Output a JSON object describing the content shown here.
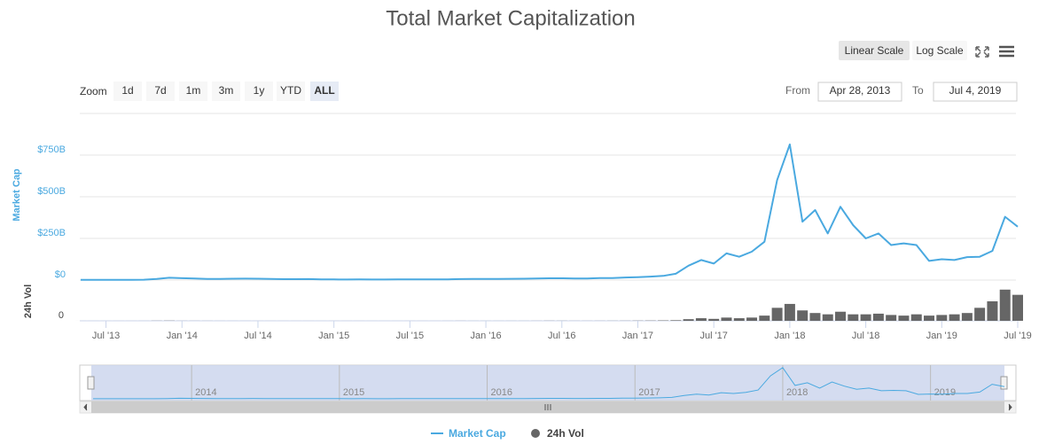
{
  "chart_data": {
    "type": "line",
    "title": "Total Market Capitalization",
    "ylabel": "Market Cap",
    "y2label": "24h Vol",
    "log_scale": false,
    "grid": true,
    "x": [
      "2013-05",
      "2013-06",
      "2013-07",
      "2013-08",
      "2013-09",
      "2013-10",
      "2013-11",
      "2013-12",
      "2014-01",
      "2014-02",
      "2014-03",
      "2014-04",
      "2014-05",
      "2014-06",
      "2014-07",
      "2014-08",
      "2014-09",
      "2014-10",
      "2014-11",
      "2014-12",
      "2015-01",
      "2015-02",
      "2015-03",
      "2015-04",
      "2015-05",
      "2015-06",
      "2015-07",
      "2015-08",
      "2015-09",
      "2015-10",
      "2015-11",
      "2015-12",
      "2016-01",
      "2016-02",
      "2016-03",
      "2016-04",
      "2016-05",
      "2016-06",
      "2016-07",
      "2016-08",
      "2016-09",
      "2016-10",
      "2016-11",
      "2016-12",
      "2017-01",
      "2017-02",
      "2017-03",
      "2017-04",
      "2017-05",
      "2017-06",
      "2017-07",
      "2017-08",
      "2017-09",
      "2017-10",
      "2017-11",
      "2017-12",
      "2018-01",
      "2018-02",
      "2018-03",
      "2018-04",
      "2018-05",
      "2018-06",
      "2018-07",
      "2018-08",
      "2018-09",
      "2018-10",
      "2018-11",
      "2018-12",
      "2019-01",
      "2019-02",
      "2019-03",
      "2019-04",
      "2019-05",
      "2019-06",
      "2019-07"
    ],
    "series": [
      {
        "name": "Market Cap",
        "color": "#4aa9e0",
        "values": [
          1.5,
          1.3,
          1.2,
          1.5,
          1.7,
          2.2,
          7,
          14,
          11,
          9,
          7,
          6.5,
          8,
          8.5,
          8,
          7,
          5.5,
          5.3,
          5.6,
          4.5,
          3.5,
          3.3,
          3.5,
          3.2,
          3.3,
          3.6,
          4.4,
          3.6,
          3.5,
          4.5,
          5.6,
          6.9,
          6.6,
          6.9,
          7.5,
          7.8,
          8.8,
          10.5,
          10.5,
          9.6,
          9.8,
          11.5,
          12.2,
          15.5,
          17.7,
          20.7,
          25,
          38,
          86,
          120,
          99,
          160,
          140,
          170,
          230,
          600,
          814,
          350,
          420,
          280,
          440,
          330,
          250,
          280,
          210,
          220,
          210,
          115,
          125,
          120,
          138,
          140,
          175,
          380,
          320
        ]
      },
      {
        "name": "24h Vol",
        "color": "#666666",
        "axis": "y2",
        "values": [
          0.02,
          0.02,
          0.02,
          0.03,
          0.03,
          0.05,
          0.2,
          0.3,
          0.1,
          0.1,
          0.08,
          0.05,
          0.04,
          0.04,
          0.03,
          0.03,
          0.03,
          0.03,
          0.03,
          0.02,
          0.03,
          0.03,
          0.03,
          0.02,
          0.02,
          0.02,
          0.03,
          0.03,
          0.03,
          0.05,
          0.1,
          0.06,
          0.06,
          0.06,
          0.07,
          0.07,
          0.1,
          0.2,
          0.15,
          0.1,
          0.1,
          0.12,
          0.15,
          0.2,
          0.3,
          0.4,
          0.6,
          0.9,
          2.5,
          4,
          3,
          5,
          4,
          5,
          8,
          20,
          26,
          16,
          12,
          10,
          14,
          10,
          10,
          11,
          9,
          8,
          10,
          8,
          9,
          10,
          12,
          20,
          30,
          48,
          40
        ]
      }
    ],
    "xlim": [
      "2013-05",
      "2019-07"
    ],
    "xticks": [
      {
        "value": "2013-07",
        "label": "Jul '13"
      },
      {
        "value": "2014-01",
        "label": "Jan '14"
      },
      {
        "value": "2014-07",
        "label": "Jul '14"
      },
      {
        "value": "2015-01",
        "label": "Jan '15"
      },
      {
        "value": "2015-07",
        "label": "Jul '15"
      },
      {
        "value": "2016-01",
        "label": "Jan '16"
      },
      {
        "value": "2016-07",
        "label": "Jul '16"
      },
      {
        "value": "2017-01",
        "label": "Jan '17"
      },
      {
        "value": "2017-07",
        "label": "Jul '17"
      },
      {
        "value": "2018-01",
        "label": "Jan '18"
      },
      {
        "value": "2018-07",
        "label": "Jul '18"
      },
      {
        "value": "2019-01",
        "label": "Jan '19"
      },
      {
        "value": "2019-07",
        "label": "Jul '19"
      }
    ],
    "ylim": [
      0,
      1000
    ],
    "yticks": [
      {
        "value": 0,
        "label": "$0"
      },
      {
        "value": 250,
        "label": "$250B"
      },
      {
        "value": 500,
        "label": "$500B"
      },
      {
        "value": 750,
        "label": "$750B"
      }
    ],
    "y2lim": [
      0,
      60
    ],
    "y2ticks": [
      0
    ],
    "navigator": {
      "xticks": [
        {
          "value": "2014-01",
          "label": "2014"
        },
        {
          "value": "2015-01",
          "label": "2015"
        },
        {
          "value": "2016-01",
          "label": "2016"
        },
        {
          "value": "2017-01",
          "label": "2017"
        },
        {
          "value": "2018-01",
          "label": "2018"
        },
        {
          "value": "2019-01",
          "label": "2019"
        }
      ]
    }
  },
  "controls": {
    "scale_buttons": [
      "Linear Scale",
      "Log Scale"
    ],
    "zoom_label": "Zoom",
    "zoom_buttons": [
      "1d",
      "7d",
      "1m",
      "3m",
      "1y",
      "YTD",
      "ALL"
    ],
    "from_label": "From",
    "from_date": "Apr 28, 2013",
    "to_label": "To",
    "to_date": "Jul 4, 2019"
  }
}
